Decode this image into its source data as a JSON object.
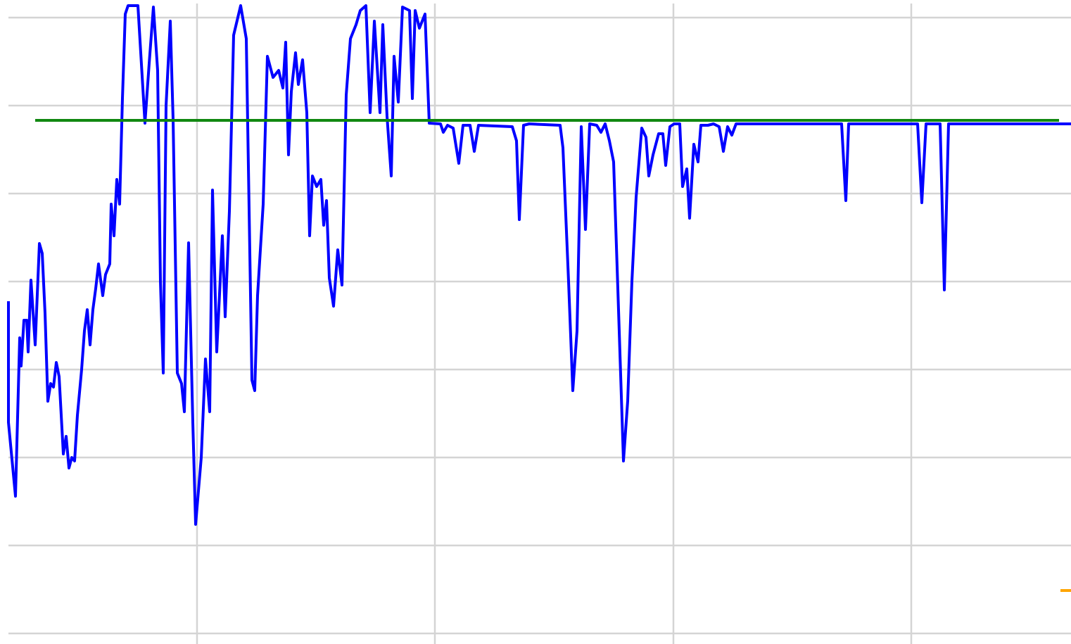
{
  "chart_data": {
    "type": "line",
    "grid": true,
    "xlim": [
      0,
      1522
    ],
    "xticks": [
      280,
      618,
      957,
      1295
    ],
    "ylim": [
      -15,
      900
    ],
    "yticks": [
      0,
      125,
      250,
      375,
      500,
      625,
      750,
      875
    ],
    "series": [
      {
        "color": "#0000ff",
        "x": [
          12,
          12,
          22,
          28,
          30,
          34,
          38,
          40,
          44,
          50,
          56,
          60,
          64,
          68,
          72,
          76,
          80,
          84,
          90,
          94,
          98,
          102,
          106,
          110,
          116,
          120,
          124,
          128,
          132,
          136,
          140,
          146,
          150,
          156,
          158,
          162,
          166,
          170,
          174,
          178,
          182,
          196,
          206,
          212,
          218,
          224,
          228,
          232,
          236,
          242,
          246,
          252,
          258,
          262,
          268,
          274,
          278,
          286,
          292,
          298,
          302,
          308,
          316,
          320,
          326,
          332,
          342,
          350,
          358,
          362,
          366,
          374,
          380,
          388,
          396,
          402,
          406,
          410,
          414,
          420,
          424,
          430,
          436,
          440,
          444,
          450,
          456,
          460,
          464,
          468,
          474,
          480,
          486,
          492,
          498,
          506,
          512,
          520,
          526,
          532,
          540,
          544,
          550,
          556,
          560,
          566,
          572,
          582,
          586,
          590,
          596,
          604,
          610,
          626,
          630,
          636,
          644,
          652,
          658,
          668,
          674,
          680,
          728,
          734,
          738,
          744,
          752,
          796,
          800,
          808,
          814,
          820,
          826,
          832,
          838,
          848,
          854,
          860,
          866,
          872,
          878,
          886,
          892,
          898,
          904,
          912,
          918,
          922,
          928,
          936,
          942,
          946,
          952,
          958,
          966,
          970,
          976,
          980,
          986,
          992,
          996,
          1006,
          1014,
          1022,
          1028,
          1034,
          1040,
          1046,
          1196,
          1202,
          1206,
          1304,
          1310,
          1316,
          1336,
          1342,
          1348,
          1522
        ],
        "values": [
          472,
          300,
          195,
          420,
          380,
          445,
          445,
          400,
          502,
          410,
          554,
          540,
          455,
          330,
          355,
          350,
          385,
          365,
          255,
          280,
          235,
          250,
          245,
          310,
          375,
          430,
          460,
          410,
          460,
          490,
          525,
          480,
          510,
          525,
          610,
          565,
          645,
          610,
          760,
          880,
          892,
          892,
          725,
          810,
          890,
          800,
          500,
          370,
          750,
          870,
          730,
          370,
          355,
          315,
          555,
          300,
          155,
          250,
          390,
          315,
          630,
          400,
          565,
          450,
          600,
          850,
          892,
          845,
          360,
          345,
          480,
          610,
          820,
          790,
          800,
          775,
          840,
          680,
          770,
          825,
          780,
          815,
          740,
          565,
          650,
          635,
          645,
          580,
          615,
          505,
          465,
          545,
          495,
          765,
          845,
          865,
          885,
          892,
          740,
          870,
          740,
          865,
          735,
          650,
          820,
          755,
          890,
          885,
          760,
          885,
          860,
          880,
          725,
          724,
          712,
          722,
          718,
          668,
          722,
          722,
          685,
          722,
          720,
          700,
          588,
          722,
          724,
          722,
          690,
          500,
          345,
          430,
          720,
          574,
          724,
          722,
          712,
          724,
          700,
          670,
          490,
          245,
          330,
          500,
          620,
          718,
          705,
          650,
          680,
          710,
          710,
          665,
          720,
          724,
          724,
          635,
          660,
          590,
          695,
          670,
          722,
          722,
          724,
          720,
          685,
          720,
          708,
          724,
          724,
          615,
          724,
          724,
          612,
          724,
          724,
          488,
          724,
          724
        ]
      },
      {
        "color": "#118811",
        "x": [
          50,
          1505
        ],
        "values": [
          729,
          729
        ]
      },
      {
        "color": "#ffa500",
        "x": [
          1507,
          1522
        ],
        "values": [
          61,
          61
        ]
      }
    ]
  }
}
